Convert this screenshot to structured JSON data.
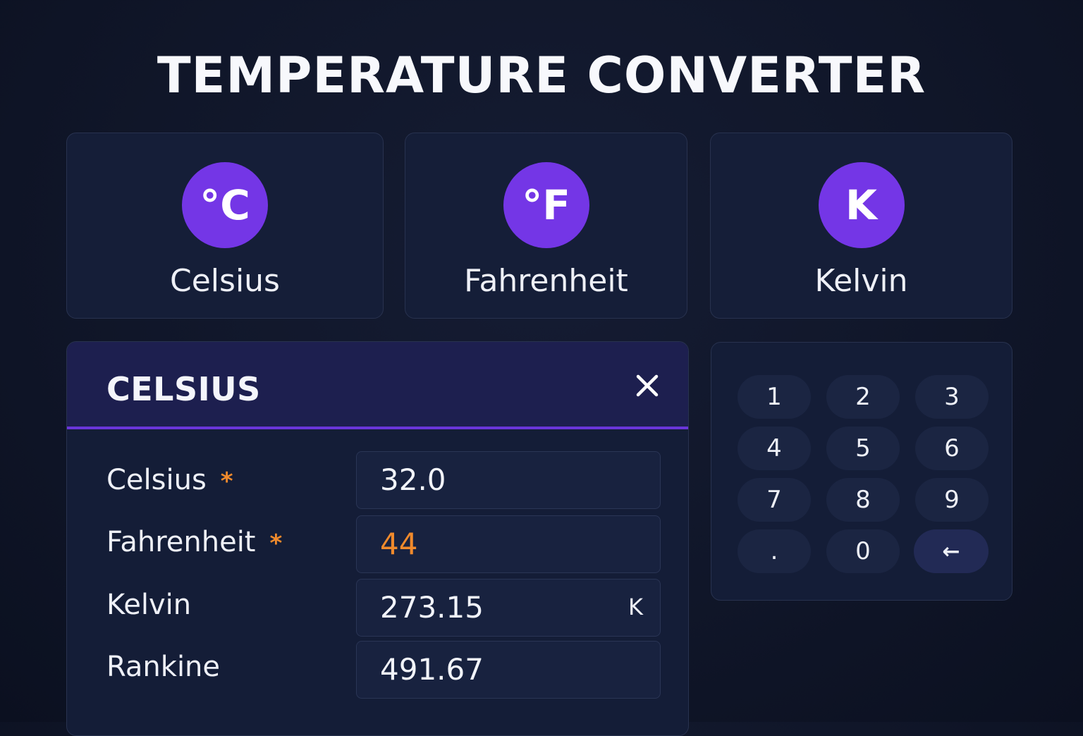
{
  "title": "TEMPERATURE CONVERTER",
  "colors": {
    "accent": "#7436e6",
    "required": "#f08a2c",
    "background": "#101629",
    "card": "#151e38"
  },
  "units": [
    {
      "symbol": "°C",
      "label": "Celsius"
    },
    {
      "symbol": "°F",
      "label": "Fahrenheit"
    },
    {
      "symbol": "K",
      "label": "Kelvin"
    }
  ],
  "panel": {
    "title": "CELSIUS",
    "close_icon": "close-icon",
    "required_mark": "*",
    "fields": [
      {
        "label": "Celsius",
        "value": "32.0",
        "required": true
      },
      {
        "label": "Fahrenheit",
        "value": "44",
        "required": true
      },
      {
        "label": "Kelvin",
        "value": "273.15",
        "suffix": "K"
      },
      {
        "label": "Rankine",
        "value": "491.67"
      }
    ]
  },
  "keypad": {
    "keys": [
      "1",
      "2",
      "3",
      "4",
      "5",
      "6",
      "7",
      "8",
      "9",
      ".",
      "0",
      "←"
    ],
    "backspace_icon": "backspace-arrow-icon"
  }
}
